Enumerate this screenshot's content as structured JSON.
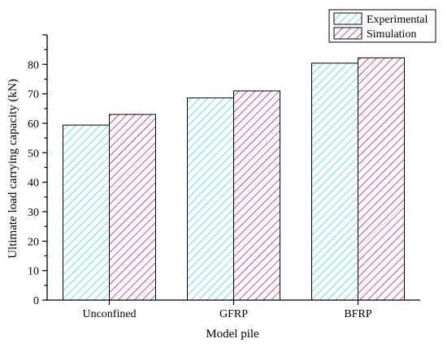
{
  "chart_data": {
    "type": "bar",
    "categories": [
      "Unconfined",
      "GFRP",
      "BFRP"
    ],
    "series": [
      {
        "name": "Experimental",
        "values": [
          59.4,
          68.6,
          80.4
        ],
        "color": "#3fd6d6"
      },
      {
        "name": "Simulation",
        "values": [
          63.0,
          71.0,
          82.2
        ],
        "color": "#c8186e"
      }
    ],
    "xlabel": "Model pile",
    "ylabel": "Ultimate load carrying capacity (kN)",
    "ylim": [
      0,
      90
    ],
    "yticks": [
      0,
      10,
      20,
      30,
      40,
      50,
      60,
      70,
      80
    ],
    "pattern": "diagonal-hatch",
    "grid": false,
    "legend_position": "top-right"
  }
}
